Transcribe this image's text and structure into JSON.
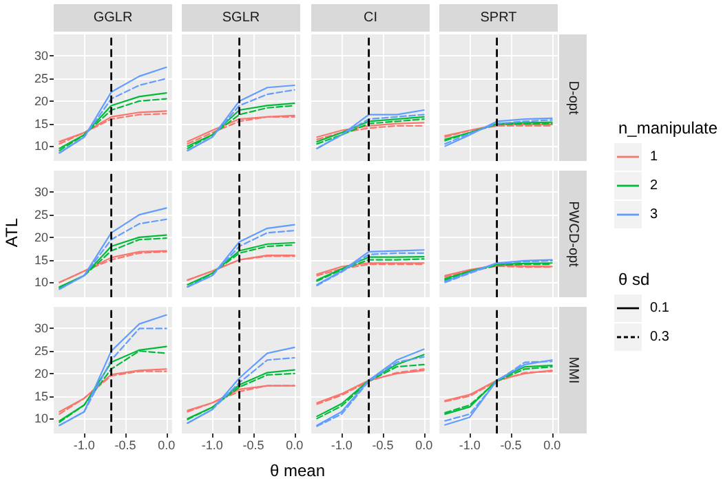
{
  "chart_data": [
    {
      "type": "line",
      "title": "GGLR",
      "x": [
        -1.3,
        -1,
        -0.67,
        -0.33,
        0
      ],
      "xlim": [
        -1.37,
        0.07
      ],
      "ylim": [
        6.7,
        34.8
      ],
      "xticks": [
        -1,
        -0.5,
        0
      ],
      "yticks": [
        10,
        15,
        20,
        25,
        30
      ],
      "grid": true,
      "tick_labels": "y",
      "ref_lines": [
        {
          "axis": "x",
          "value": -0.67,
          "line_style": "dashed",
          "color": "#000000"
        }
      ],
      "series": [
        {
          "color": "#f8766d",
          "line_style": "solid",
          "values": [
            11,
            13,
            16.5,
            17.5,
            17.8
          ]
        },
        {
          "color": "#f8766d",
          "line_style": "dashed",
          "values": [
            10.5,
            13,
            16,
            17,
            17.2
          ]
        },
        {
          "color": "#00ba38",
          "line_style": "solid",
          "values": [
            9.5,
            12.5,
            19,
            21,
            21.8
          ]
        },
        {
          "color": "#00ba38",
          "line_style": "dashed",
          "values": [
            9,
            12.5,
            18,
            20,
            20.5
          ]
        },
        {
          "color": "#619cff",
          "line_style": "solid",
          "values": [
            8.5,
            12,
            22,
            25.5,
            27.5
          ]
        },
        {
          "color": "#619cff",
          "line_style": "dashed",
          "values": [
            8.5,
            12,
            20.5,
            23.5,
            25
          ]
        }
      ]
    },
    {
      "type": "line",
      "title": "SGLR",
      "x": [
        -1.3,
        -1,
        -0.67,
        -0.33,
        0
      ],
      "xlim": [
        -1.37,
        0.07
      ],
      "ylim": [
        6.7,
        34.8
      ],
      "xticks": [
        -1,
        -0.5,
        0
      ],
      "yticks": [
        10,
        15,
        20,
        25,
        30
      ],
      "grid": true,
      "tick_labels": false,
      "ref_lines": [
        {
          "axis": "x",
          "value": -0.67,
          "line_style": "dashed",
          "color": "#000000"
        }
      ],
      "series": [
        {
          "color": "#f8766d",
          "line_style": "solid",
          "values": [
            11,
            13.5,
            16,
            16.5,
            16.8
          ]
        },
        {
          "color": "#f8766d",
          "line_style": "dashed",
          "values": [
            10.5,
            13,
            15.5,
            16.5,
            16.5
          ]
        },
        {
          "color": "#00ba38",
          "line_style": "solid",
          "values": [
            10,
            12.5,
            18,
            19,
            19.5
          ]
        },
        {
          "color": "#00ba38",
          "line_style": "dashed",
          "values": [
            9.5,
            12.5,
            17,
            18.5,
            19
          ]
        },
        {
          "color": "#619cff",
          "line_style": "solid",
          "values": [
            9,
            12,
            20,
            23,
            23.5
          ]
        },
        {
          "color": "#619cff",
          "line_style": "dashed",
          "values": [
            9,
            12,
            19,
            21.5,
            22.5
          ]
        }
      ]
    },
    {
      "type": "line",
      "title": "CI",
      "x": [
        -1.3,
        -1,
        -0.67,
        -0.33,
        0
      ],
      "xlim": [
        -1.37,
        0.07
      ],
      "ylim": [
        6.7,
        34.8
      ],
      "xticks": [
        -1,
        -0.5,
        0
      ],
      "yticks": [
        10,
        15,
        20,
        25,
        30
      ],
      "grid": true,
      "tick_labels": false,
      "ref_lines": [
        {
          "axis": "x",
          "value": -0.67,
          "line_style": "dashed",
          "color": "#000000"
        }
      ],
      "series": [
        {
          "color": "#f8766d",
          "line_style": "solid",
          "values": [
            12,
            13.5,
            14.5,
            15,
            15.2
          ]
        },
        {
          "color": "#f8766d",
          "line_style": "dashed",
          "values": [
            11.5,
            13,
            14,
            14.5,
            14.5
          ]
        },
        {
          "color": "#00ba38",
          "line_style": "solid",
          "values": [
            11,
            13,
            15.5,
            16,
            16.5
          ]
        },
        {
          "color": "#00ba38",
          "line_style": "dashed",
          "values": [
            10.5,
            12.5,
            15,
            15.5,
            16
          ]
        },
        {
          "color": "#619cff",
          "line_style": "solid",
          "values": [
            9.5,
            12.5,
            17,
            17,
            18
          ]
        },
        {
          "color": "#619cff",
          "line_style": "dashed",
          "values": [
            9.5,
            12.5,
            16,
            16.5,
            17
          ]
        }
      ]
    },
    {
      "type": "line",
      "title": "SPRT",
      "y2label": "D-opt",
      "x": [
        -1.3,
        -1,
        -0.67,
        -0.33,
        0
      ],
      "xlim": [
        -1.37,
        0.07
      ],
      "ylim": [
        6.7,
        34.8
      ],
      "xticks": [
        -1,
        -0.5,
        0
      ],
      "yticks": [
        10,
        15,
        20,
        25,
        30
      ],
      "grid": true,
      "tick_labels": false,
      "ref_lines": [
        {
          "axis": "x",
          "value": -0.67,
          "line_style": "dashed",
          "color": "#000000"
        }
      ],
      "series": [
        {
          "color": "#f8766d",
          "line_style": "solid",
          "values": [
            12.3,
            13.5,
            14.8,
            14.8,
            14.8
          ]
        },
        {
          "color": "#f8766d",
          "line_style": "dashed",
          "values": [
            12,
            13.5,
            14.5,
            14.5,
            14.5
          ]
        },
        {
          "color": "#00ba38",
          "line_style": "solid",
          "values": [
            11.5,
            13,
            15,
            15.2,
            15.3
          ]
        },
        {
          "color": "#00ba38",
          "line_style": "dashed",
          "values": [
            11.2,
            13,
            14.8,
            15,
            15
          ]
        },
        {
          "color": "#619cff",
          "line_style": "solid",
          "values": [
            10,
            12.5,
            15.5,
            16,
            16.2
          ]
        },
        {
          "color": "#619cff",
          "line_style": "dashed",
          "values": [
            10.5,
            12.8,
            15,
            15.5,
            15.8
          ]
        }
      ]
    },
    {
      "type": "line",
      "ylabel": "ATL",
      "x": [
        -1.3,
        -1,
        -0.67,
        -0.33,
        0
      ],
      "xlim": [
        -1.37,
        0.07
      ],
      "ylim": [
        6.7,
        34.8
      ],
      "xticks": [
        -1,
        -0.5,
        0
      ],
      "yticks": [
        10,
        15,
        20,
        25,
        30
      ],
      "grid": true,
      "tick_labels": "y",
      "ref_lines": [
        {
          "axis": "x",
          "value": -0.67,
          "line_style": "dashed",
          "color": "#000000"
        }
      ],
      "series": [
        {
          "color": "#f8766d",
          "line_style": "solid",
          "values": [
            10,
            12.5,
            15.5,
            16.8,
            17
          ]
        },
        {
          "color": "#f8766d",
          "line_style": "dashed",
          "values": [
            10,
            12.5,
            15,
            16.5,
            16.8
          ]
        },
        {
          "color": "#00ba38",
          "line_style": "solid",
          "values": [
            9,
            11.5,
            18,
            20,
            20.5
          ]
        },
        {
          "color": "#00ba38",
          "line_style": "dashed",
          "values": [
            8.8,
            11.5,
            17,
            19.5,
            19.8
          ]
        },
        {
          "color": "#619cff",
          "line_style": "solid",
          "values": [
            8.5,
            11.5,
            21,
            25,
            26.5
          ]
        },
        {
          "color": "#619cff",
          "line_style": "dashed",
          "values": [
            8.5,
            11.5,
            19.5,
            23,
            24
          ]
        }
      ]
    },
    {
      "type": "line",
      "x": [
        -1.3,
        -1,
        -0.67,
        -0.33,
        0
      ],
      "xlim": [
        -1.37,
        0.07
      ],
      "ylim": [
        6.7,
        34.8
      ],
      "xticks": [
        -1,
        -0.5,
        0
      ],
      "yticks": [
        10,
        15,
        20,
        25,
        30
      ],
      "grid": true,
      "tick_labels": false,
      "ref_lines": [
        {
          "axis": "x",
          "value": -0.67,
          "line_style": "dashed",
          "color": "#000000"
        }
      ],
      "series": [
        {
          "color": "#f8766d",
          "line_style": "solid",
          "values": [
            10.5,
            12.5,
            15,
            16,
            16
          ]
        },
        {
          "color": "#f8766d",
          "line_style": "dashed",
          "values": [
            10.5,
            12.5,
            15,
            15.8,
            15.8
          ]
        },
        {
          "color": "#00ba38",
          "line_style": "solid",
          "values": [
            9.5,
            12,
            17,
            18.5,
            18.8
          ]
        },
        {
          "color": "#00ba38",
          "line_style": "dashed",
          "values": [
            9,
            12,
            16.5,
            18,
            18.3
          ]
        },
        {
          "color": "#619cff",
          "line_style": "solid",
          "values": [
            9,
            11.5,
            19,
            22,
            22.8
          ]
        },
        {
          "color": "#619cff",
          "line_style": "dashed",
          "values": [
            9,
            11.5,
            18,
            21,
            21.5
          ]
        }
      ]
    },
    {
      "type": "line",
      "x": [
        -1.3,
        -1,
        -0.67,
        -0.33,
        0
      ],
      "xlim": [
        -1.37,
        0.07
      ],
      "ylim": [
        6.7,
        34.8
      ],
      "xticks": [
        -1,
        -0.5,
        0
      ],
      "yticks": [
        10,
        15,
        20,
        25,
        30
      ],
      "grid": true,
      "tick_labels": false,
      "ref_lines": [
        {
          "axis": "x",
          "value": -0.67,
          "line_style": "dashed",
          "color": "#000000"
        }
      ],
      "series": [
        {
          "color": "#f8766d",
          "line_style": "solid",
          "values": [
            11.8,
            13.5,
            14.3,
            14.3,
            14.3
          ]
        },
        {
          "color": "#f8766d",
          "line_style": "dashed",
          "values": [
            11.5,
            13,
            14,
            14,
            14
          ]
        },
        {
          "color": "#00ba38",
          "line_style": "solid",
          "values": [
            10.5,
            13,
            15.6,
            15.6,
            15.7
          ]
        },
        {
          "color": "#00ba38",
          "line_style": "dashed",
          "values": [
            10.3,
            12.8,
            15,
            15,
            15.2
          ]
        },
        {
          "color": "#619cff",
          "line_style": "solid",
          "values": [
            9.5,
            12.5,
            16.8,
            17,
            17.2
          ]
        },
        {
          "color": "#619cff",
          "line_style": "dashed",
          "values": [
            9.3,
            12.3,
            16.2,
            16.5,
            16.5
          ]
        }
      ]
    },
    {
      "type": "line",
      "y2label": "PWCD-opt",
      "x": [
        -1.3,
        -1,
        -0.67,
        -0.33,
        0
      ],
      "xlim": [
        -1.37,
        0.07
      ],
      "ylim": [
        6.7,
        34.8
      ],
      "xticks": [
        -1,
        -0.5,
        0
      ],
      "yticks": [
        10,
        15,
        20,
        25,
        30
      ],
      "grid": true,
      "tick_labels": false,
      "ref_lines": [
        {
          "axis": "x",
          "value": -0.67,
          "line_style": "dashed",
          "color": "#000000"
        }
      ],
      "series": [
        {
          "color": "#f8766d",
          "line_style": "solid",
          "values": [
            11.5,
            12.8,
            13.8,
            13.6,
            13.5
          ]
        },
        {
          "color": "#f8766d",
          "line_style": "dashed",
          "values": [
            11.2,
            12.6,
            13.6,
            13.4,
            13.4
          ]
        },
        {
          "color": "#00ba38",
          "line_style": "solid",
          "values": [
            10.8,
            12.5,
            14,
            14.2,
            14.3
          ]
        },
        {
          "color": "#00ba38",
          "line_style": "dashed",
          "values": [
            10.5,
            12.3,
            13.8,
            14,
            14
          ]
        },
        {
          "color": "#619cff",
          "line_style": "solid",
          "values": [
            10.2,
            12.2,
            14.3,
            14.8,
            15
          ]
        },
        {
          "color": "#619cff",
          "line_style": "dashed",
          "values": [
            10,
            12,
            14.2,
            14.6,
            14.8
          ]
        }
      ]
    },
    {
      "type": "line",
      "x": [
        -1.3,
        -1,
        -0.67,
        -0.33,
        0
      ],
      "xlim": [
        -1.37,
        0.07
      ],
      "ylim": [
        6.7,
        34.8
      ],
      "xticks": [
        {
          "value": -1,
          "label": "-1.0"
        },
        {
          "value": -0.5,
          "label": "-0.5"
        },
        {
          "value": 0,
          "label": "0.0"
        }
      ],
      "yticks": [
        10,
        15,
        20,
        25,
        30
      ],
      "grid": true,
      "ref_lines": [
        {
          "axis": "x",
          "value": -0.67,
          "line_style": "dashed",
          "color": "#000000"
        }
      ],
      "series": [
        {
          "color": "#f8766d",
          "line_style": "solid",
          "values": [
            11.5,
            14.5,
            19.8,
            20.7,
            21
          ]
        },
        {
          "color": "#f8766d",
          "line_style": "dashed",
          "values": [
            11,
            14.5,
            19.5,
            20.5,
            20.5
          ]
        },
        {
          "color": "#00ba38",
          "line_style": "solid",
          "values": [
            9.5,
            13,
            22.5,
            25.2,
            26
          ]
        },
        {
          "color": "#00ba38",
          "line_style": "dashed",
          "values": [
            9.2,
            13,
            21,
            25,
            24.5
          ]
        },
        {
          "color": "#619cff",
          "line_style": "solid",
          "values": [
            8.5,
            11.5,
            25,
            31,
            33
          ]
        },
        {
          "color": "#619cff",
          "line_style": "dashed",
          "values": [
            8.5,
            11.5,
            23,
            30,
            30
          ]
        }
      ]
    },
    {
      "type": "line",
      "xlabel": "θ mean",
      "x": [
        -1.3,
        -1,
        -0.67,
        -0.33,
        0
      ],
      "xlim": [
        -1.37,
        0.07
      ],
      "ylim": [
        6.7,
        34.8
      ],
      "xticks": [
        {
          "value": -1,
          "label": "-1.0"
        },
        {
          "value": -0.5,
          "label": "-0.5"
        },
        {
          "value": 0,
          "label": "0.0"
        }
      ],
      "yticks": [
        10,
        15,
        20,
        25,
        30
      ],
      "grid": true,
      "tick_labels": "x",
      "ref_lines": [
        {
          "axis": "x",
          "value": -0.67,
          "line_style": "dashed",
          "color": "#000000"
        }
      ],
      "series": [
        {
          "color": "#f8766d",
          "line_style": "solid",
          "values": [
            11.8,
            13.5,
            16.5,
            17.3,
            17.3
          ]
        },
        {
          "color": "#f8766d",
          "line_style": "dashed",
          "values": [
            11.5,
            13.5,
            16,
            17.3,
            17.3
          ]
        },
        {
          "color": "#00ba38",
          "line_style": "solid",
          "values": [
            10,
            12.5,
            17.5,
            20.2,
            20.8
          ]
        },
        {
          "color": "#00ba38",
          "line_style": "dashed",
          "values": [
            9.8,
            12.5,
            17,
            19.7,
            20
          ]
        },
        {
          "color": "#619cff",
          "line_style": "solid",
          "values": [
            9,
            12,
            19,
            24.5,
            25.8
          ]
        },
        {
          "color": "#619cff",
          "line_style": "dashed",
          "values": [
            9,
            12,
            18,
            23,
            23.5
          ]
        }
      ]
    },
    {
      "type": "line",
      "x": [
        -1.3,
        -1,
        -0.67,
        -0.33,
        0
      ],
      "xlim": [
        -1.37,
        0.07
      ],
      "ylim": [
        6.7,
        34.8
      ],
      "xticks": [
        {
          "value": -1,
          "label": "-1.0"
        },
        {
          "value": -0.5,
          "label": "-0.5"
        },
        {
          "value": 0,
          "label": "0.0"
        }
      ],
      "yticks": [
        10,
        15,
        20,
        25,
        30
      ],
      "grid": true,
      "tick_labels": "x",
      "ref_lines": [
        {
          "axis": "x",
          "value": -0.67,
          "line_style": "dashed",
          "color": "#000000"
        }
      ],
      "series": [
        {
          "color": "#f8766d",
          "line_style": "solid",
          "values": [
            13.5,
            15.5,
            18.5,
            20,
            20.7
          ]
        },
        {
          "color": "#f8766d",
          "line_style": "dashed",
          "values": [
            13.2,
            15.2,
            18.3,
            20.2,
            21
          ]
        },
        {
          "color": "#00ba38",
          "line_style": "solid",
          "values": [
            10.5,
            13.3,
            18.5,
            22,
            24.2
          ]
        },
        {
          "color": "#00ba38",
          "line_style": "dashed",
          "values": [
            10,
            12.8,
            18.3,
            21.5,
            22
          ]
        },
        {
          "color": "#619cff",
          "line_style": "solid",
          "values": [
            8.5,
            11.5,
            18.5,
            23,
            25.4
          ]
        },
        {
          "color": "#619cff",
          "line_style": "dashed",
          "values": [
            8.3,
            11,
            18.3,
            22.5,
            23.7
          ]
        }
      ]
    },
    {
      "type": "line",
      "y2label": "MMI",
      "x": [
        -1.3,
        -1,
        -0.67,
        -0.33,
        0
      ],
      "xlim": [
        -1.37,
        0.07
      ],
      "ylim": [
        6.7,
        34.8
      ],
      "xticks": [
        {
          "value": -1,
          "label": "-1.0"
        },
        {
          "value": -0.5,
          "label": "-0.5"
        },
        {
          "value": 0,
          "label": "0.0"
        }
      ],
      "yticks": [
        10,
        15,
        20,
        25,
        30
      ],
      "grid": true,
      "tick_labels": "x",
      "ref_lines": [
        {
          "axis": "x",
          "value": -0.67,
          "line_style": "dashed",
          "color": "#000000"
        }
      ],
      "series": [
        {
          "color": "#f8766d",
          "line_style": "solid",
          "values": [
            14,
            15.3,
            18.5,
            20,
            20.7
          ]
        },
        {
          "color": "#f8766d",
          "line_style": "dashed",
          "values": [
            13.8,
            15,
            18.3,
            20.2,
            20.5
          ]
        },
        {
          "color": "#00ba38",
          "line_style": "solid",
          "values": [
            11,
            12.6,
            18.5,
            21.5,
            21.8
          ]
        },
        {
          "color": "#00ba38",
          "line_style": "dashed",
          "values": [
            11.3,
            13,
            18.3,
            21,
            21.5
          ]
        },
        {
          "color": "#619cff",
          "line_style": "solid",
          "values": [
            8.6,
            10.3,
            18.5,
            22,
            23
          ]
        },
        {
          "color": "#619cff",
          "line_style": "dashed",
          "values": [
            9.5,
            11,
            18.3,
            22.5,
            22.7
          ]
        }
      ]
    },
    {
      "type": "other",
      "legend_title": "n_manipulate",
      "series": [
        {
          "name": "1",
          "color": "#f8766d"
        },
        {
          "name": "2",
          "color": "#00ba38"
        },
        {
          "name": "3",
          "color": "#619cff"
        }
      ]
    },
    {
      "type": "other",
      "legend_title": "θ sd",
      "series": [
        {
          "name": "0.1",
          "color": "#000000",
          "line_style": "solid"
        },
        {
          "name": "0.3",
          "color": "#000000",
          "line_style": "dashed"
        }
      ]
    }
  ]
}
